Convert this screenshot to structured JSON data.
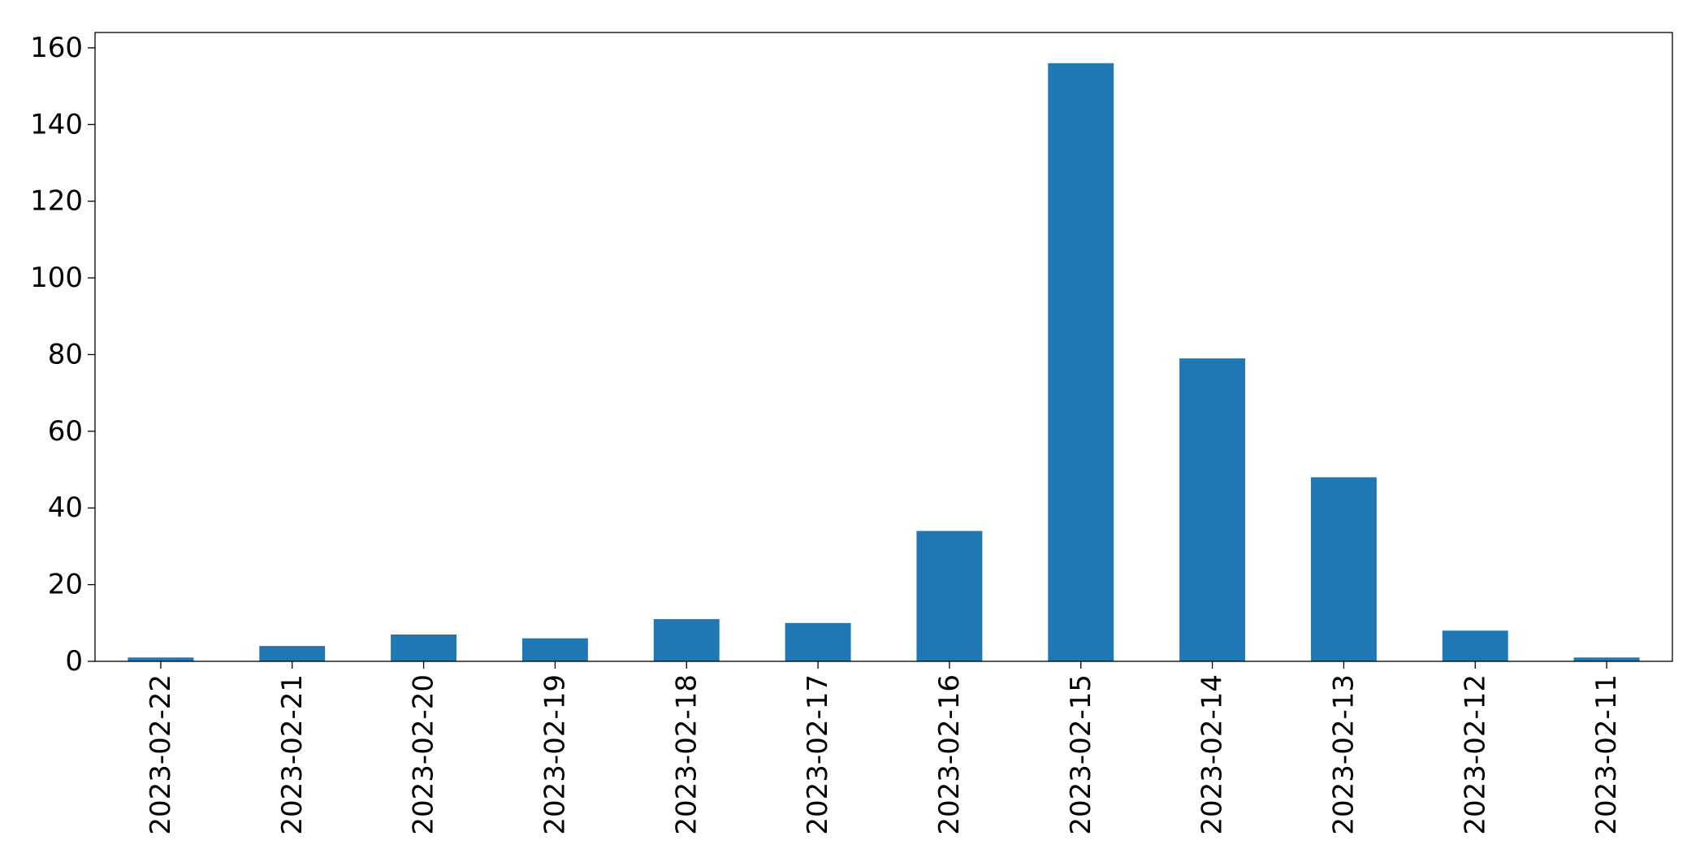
{
  "chart_data": {
    "type": "bar",
    "categories": [
      "2023-02-22",
      "2023-02-21",
      "2023-02-20",
      "2023-02-19",
      "2023-02-18",
      "2023-02-17",
      "2023-02-16",
      "2023-02-15",
      "2023-02-14",
      "2023-02-13",
      "2023-02-12",
      "2023-02-11"
    ],
    "values": [
      1,
      4,
      7,
      6,
      11,
      10,
      34,
      156,
      79,
      48,
      8,
      1
    ],
    "title": "",
    "xlabel": "",
    "ylabel": "",
    "ylim": [
      0,
      164
    ],
    "yticks": [
      0,
      20,
      40,
      60,
      80,
      100,
      120,
      140,
      160
    ],
    "x_tick_rotation": "vertical",
    "grid": false,
    "legend": false,
    "colors": {
      "bar": "#1f77b4",
      "axis": "#000000",
      "background": "#ffffff"
    }
  }
}
